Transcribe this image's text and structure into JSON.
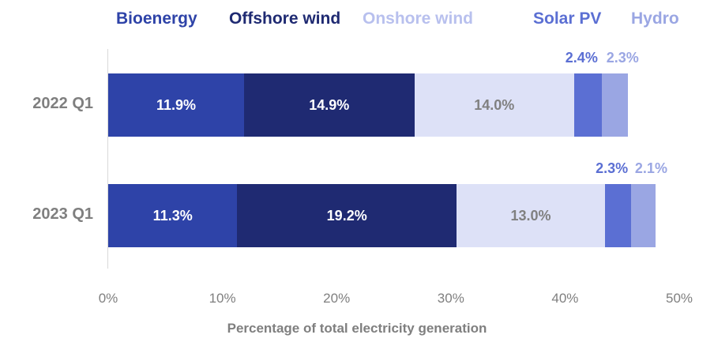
{
  "chart_data": {
    "type": "bar",
    "orientation": "horizontal-stacked",
    "categories": [
      "2022 Q1",
      "2023 Q1"
    ],
    "series": [
      {
        "name": "Bioenergy",
        "color": "#2e43a8",
        "label_color": "#ffffff",
        "values": [
          11.9,
          11.3
        ],
        "labels": [
          "11.9%",
          "11.3%"
        ]
      },
      {
        "name": "Offshore wind",
        "color": "#1f2a72",
        "label_color": "#ffffff",
        "values": [
          14.9,
          19.2
        ],
        "labels": [
          "14.9%",
          "19.2%"
        ]
      },
      {
        "name": "Onshore wind",
        "color": "#dde1f7",
        "legend_color": "#b8c0ee",
        "label_color": "#808080",
        "values": [
          14.0,
          13.0
        ],
        "labels": [
          "14.0%",
          "13.0%"
        ]
      },
      {
        "name": "Solar PV",
        "color": "#5b6fd3",
        "label_color": "#5b6fd3",
        "values": [
          2.4,
          2.3
        ],
        "labels": [
          "2.4%",
          "2.3%"
        ]
      },
      {
        "name": "Hydro",
        "color": "#9aa6e3",
        "label_color": "#9aa6e3",
        "values": [
          2.3,
          2.1
        ],
        "labels": [
          "2.3%",
          "2.1%"
        ]
      }
    ],
    "xlabel": "Percentage of total electricity generation",
    "xlim": [
      0,
      50
    ],
    "xticks": [
      "0%",
      "10%",
      "20%",
      "30%",
      "40%",
      "50%"
    ],
    "legend": "top"
  }
}
